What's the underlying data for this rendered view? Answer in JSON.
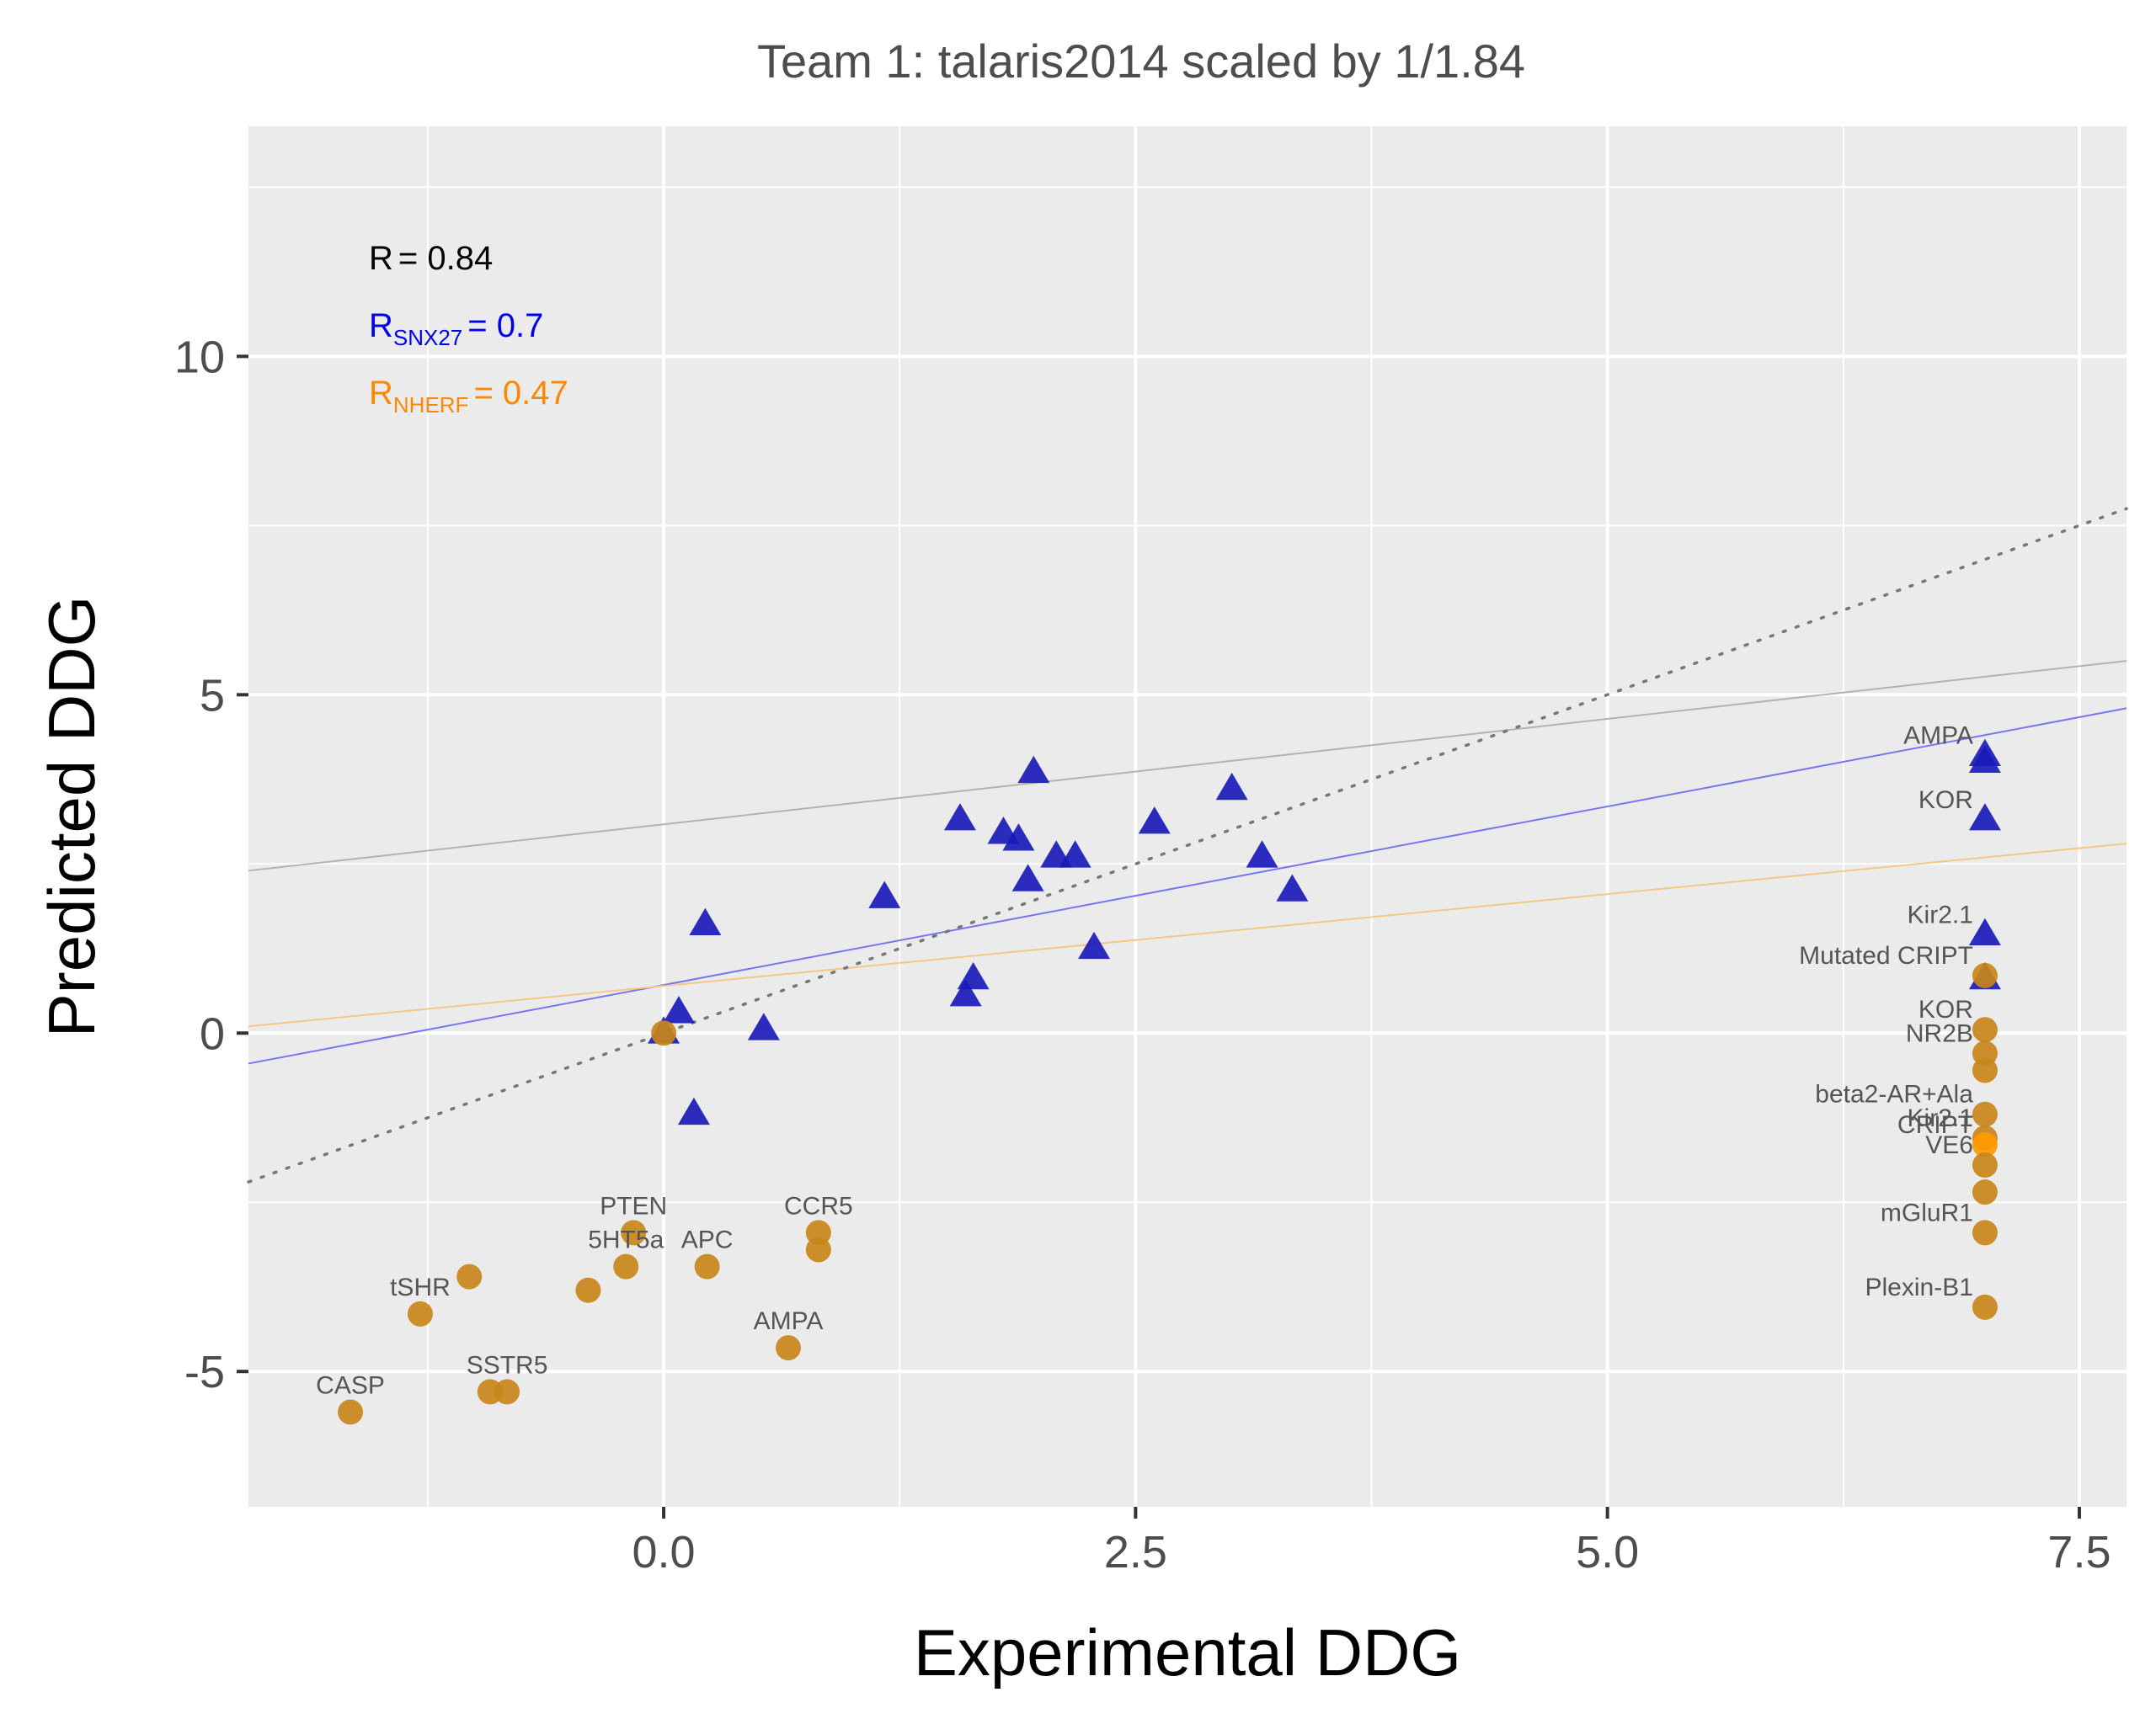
{
  "chart_data": {
    "type": "scatter",
    "title": "Team 1: talaris2014 scaled by 1/1.84",
    "xlabel": "Experimental DDG",
    "ylabel": "Predicted DDG",
    "xlim": [
      -2.2,
      7.75
    ],
    "ylim": [
      -7.0,
      13.4
    ],
    "x_ticks": [
      0.0,
      2.5,
      5.0,
      7.5
    ],
    "x_tick_labels": [
      "0.0",
      "2.5",
      "5.0",
      "7.5"
    ],
    "y_ticks": [
      -5,
      0,
      5,
      10
    ],
    "y_tick_labels": [
      "-5",
      "0",
      "5",
      "10"
    ],
    "grid": true,
    "colors": {
      "panel": "#ebebeb",
      "grid": "#ffffff",
      "snx27": "#1a1ab8",
      "nherf": "#c8861a",
      "nherf_highlight": "#ff9900",
      "overall_fit": "#b3b3b3",
      "snx27_fit": "#7777ee",
      "nherf_fit": "#f5c886",
      "identity": "#777777",
      "stat_overall": "#000000",
      "stat_snx27": "#0000ee",
      "stat_nherf": "#ff8800"
    },
    "stats": [
      {
        "label": "R",
        "sub": "",
        "value": "= 0.84",
        "color": "#000000"
      },
      {
        "label": "R",
        "sub": "SNX27",
        "value": "= 0.7",
        "color": "#0000ee"
      },
      {
        "label": "R",
        "sub": "NHERF",
        "value": "= 0.47",
        "color": "#ff8800"
      }
    ],
    "fit_lines": [
      {
        "group": "overall",
        "x": [
          -2.2,
          7.75
        ],
        "y": [
          2.4,
          5.5
        ]
      },
      {
        "group": "SNX27",
        "x": [
          -2.2,
          7.75
        ],
        "y": [
          -0.45,
          4.8
        ]
      },
      {
        "group": "NHERF",
        "x": [
          -2.2,
          7.75
        ],
        "y": [
          0.1,
          2.8
        ]
      },
      {
        "group": "identity",
        "x": [
          -2.2,
          7.75
        ],
        "y": [
          -2.2,
          7.75
        ]
      }
    ],
    "series": [
      {
        "name": "SNX27",
        "marker": "triangle",
        "points": [
          {
            "x": 0.0,
            "y": 0.0,
            "label": ""
          },
          {
            "x": 0.08,
            "y": 0.3,
            "label": ""
          },
          {
            "x": 0.16,
            "y": -1.2,
            "label": ""
          },
          {
            "x": 0.22,
            "y": 1.6,
            "label": ""
          },
          {
            "x": 0.53,
            "y": 0.05,
            "label": ""
          },
          {
            "x": 1.17,
            "y": 2.0,
            "label": ""
          },
          {
            "x": 1.57,
            "y": 3.15,
            "label": ""
          },
          {
            "x": 1.6,
            "y": 0.55,
            "label": ""
          },
          {
            "x": 1.64,
            "y": 0.8,
            "label": ""
          },
          {
            "x": 1.8,
            "y": 2.95,
            "label": ""
          },
          {
            "x": 1.88,
            "y": 2.85,
            "label": ""
          },
          {
            "x": 1.93,
            "y": 2.25,
            "label": ""
          },
          {
            "x": 1.96,
            "y": 3.85,
            "label": ""
          },
          {
            "x": 2.08,
            "y": 2.6,
            "label": ""
          },
          {
            "x": 2.18,
            "y": 2.6,
            "label": ""
          },
          {
            "x": 2.28,
            "y": 1.25,
            "label": ""
          },
          {
            "x": 2.6,
            "y": 3.1,
            "label": ""
          },
          {
            "x": 3.01,
            "y": 3.6,
            "label": ""
          },
          {
            "x": 3.17,
            "y": 2.6,
            "label": ""
          },
          {
            "x": 3.33,
            "y": 2.1,
            "label": ""
          },
          {
            "x": 7.0,
            "y": 4.1,
            "label": "AMPA"
          },
          {
            "x": 7.0,
            "y": 4.0,
            "label": ""
          },
          {
            "x": 7.0,
            "y": 3.15,
            "label": "KOR"
          },
          {
            "x": 7.0,
            "y": 1.45,
            "label": "Kir2.1"
          },
          {
            "x": 7.0,
            "y": 0.8,
            "label": ""
          }
        ]
      },
      {
        "name": "NHERF",
        "marker": "circle",
        "points": [
          {
            "x": -1.66,
            "y": -5.6,
            "label": "CASP"
          },
          {
            "x": -1.29,
            "y": -4.15,
            "label": "tSHR"
          },
          {
            "x": -1.03,
            "y": -3.6,
            "label": ""
          },
          {
            "x": -0.92,
            "y": -5.3,
            "label": ""
          },
          {
            "x": -0.83,
            "y": -5.3,
            "label": "SSTR5"
          },
          {
            "x": -0.4,
            "y": -3.8,
            "label": ""
          },
          {
            "x": -0.2,
            "y": -3.45,
            "label": "5HT5a"
          },
          {
            "x": -0.16,
            "y": -2.95,
            "label": "PTEN"
          },
          {
            "x": 0.0,
            "y": 0.0,
            "label": ""
          },
          {
            "x": 0.23,
            "y": -3.45,
            "label": "APC"
          },
          {
            "x": 0.66,
            "y": -4.65,
            "label": "AMPA"
          },
          {
            "x": 0.82,
            "y": -2.95,
            "label": "CCR5"
          },
          {
            "x": 0.82,
            "y": -3.2,
            "label": ""
          },
          {
            "x": 7.0,
            "y": 0.85,
            "label": "Mutated CRIPT"
          },
          {
            "x": 7.0,
            "y": 0.05,
            "label": "KOR"
          },
          {
            "x": 7.0,
            "y": -0.3,
            "label": "NR2B"
          },
          {
            "x": 7.0,
            "y": -0.55,
            "label": ""
          },
          {
            "x": 7.0,
            "y": -1.2,
            "label": "beta2-AR+Ala"
          },
          {
            "x": 7.0,
            "y": -1.55,
            "label": "Kir2.1"
          },
          {
            "x": 7.0,
            "y": -1.65,
            "label": "CRIPT"
          },
          {
            "x": 7.0,
            "y": -1.95,
            "label": "VE6"
          },
          {
            "x": 7.0,
            "y": -2.35,
            "label": ""
          },
          {
            "x": 7.0,
            "y": -2.95,
            "label": "mGluR1"
          },
          {
            "x": 7.0,
            "y": -4.05,
            "label": "Plexin-B1"
          }
        ]
      }
    ]
  }
}
